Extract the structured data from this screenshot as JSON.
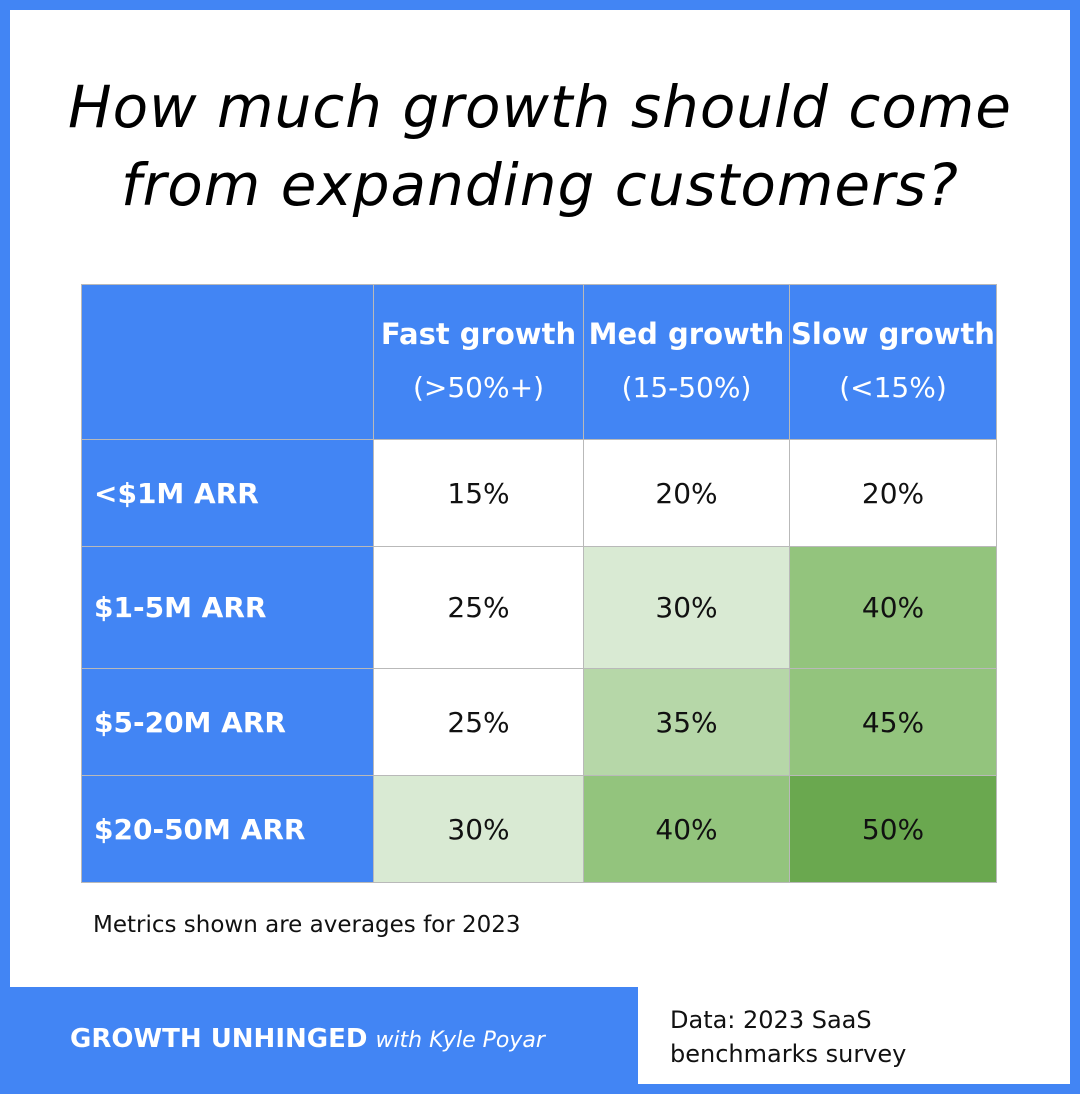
{
  "title": {
    "line1": "How much growth should come",
    "line2": "from expanding customers?"
  },
  "colors": {
    "brand_blue": "#4285f4",
    "white": "#ffffff",
    "light_green": "#d9ead3",
    "mid_green": "#b6d7a8",
    "green": "#93c47d",
    "dark_green": "#6aa84f"
  },
  "chart_data": {
    "type": "table",
    "columns": [
      {
        "name": "Fast growth",
        "range": "(>50%+)"
      },
      {
        "name": "Med growth",
        "range": "(15-50%)"
      },
      {
        "name": "Slow growth",
        "range": "(<15%)"
      }
    ],
    "rows": [
      {
        "label": "<$1M ARR",
        "values": [
          15,
          20,
          20
        ],
        "display": [
          "15%",
          "20%",
          "20%"
        ],
        "fills": [
          "#ffffff",
          "#ffffff",
          "#ffffff"
        ]
      },
      {
        "label": "$1-5M ARR",
        "values": [
          25,
          30,
          40
        ],
        "display": [
          "25%",
          "30%",
          "40%"
        ],
        "fills": [
          "#ffffff",
          "#d9ead3",
          "#93c47d"
        ]
      },
      {
        "label": "$5-20M ARR",
        "values": [
          25,
          35,
          45
        ],
        "display": [
          "25%",
          "35%",
          "45%"
        ],
        "fills": [
          "#ffffff",
          "#b6d7a8",
          "#93c47d"
        ]
      },
      {
        "label": "$20-50M ARR",
        "values": [
          30,
          40,
          50
        ],
        "display": [
          "30%",
          "40%",
          "50%"
        ],
        "fills": [
          "#d9ead3",
          "#93c47d",
          "#6aa84f"
        ]
      }
    ],
    "unit": "%"
  },
  "footnote": "Metrics shown are averages for 2023",
  "brand": {
    "name": "GROWTH UNHINGED",
    "byline": "with Kyle Poyar"
  },
  "source": {
    "line1": "Data: 2023 SaaS",
    "line2": "benchmarks survey"
  }
}
